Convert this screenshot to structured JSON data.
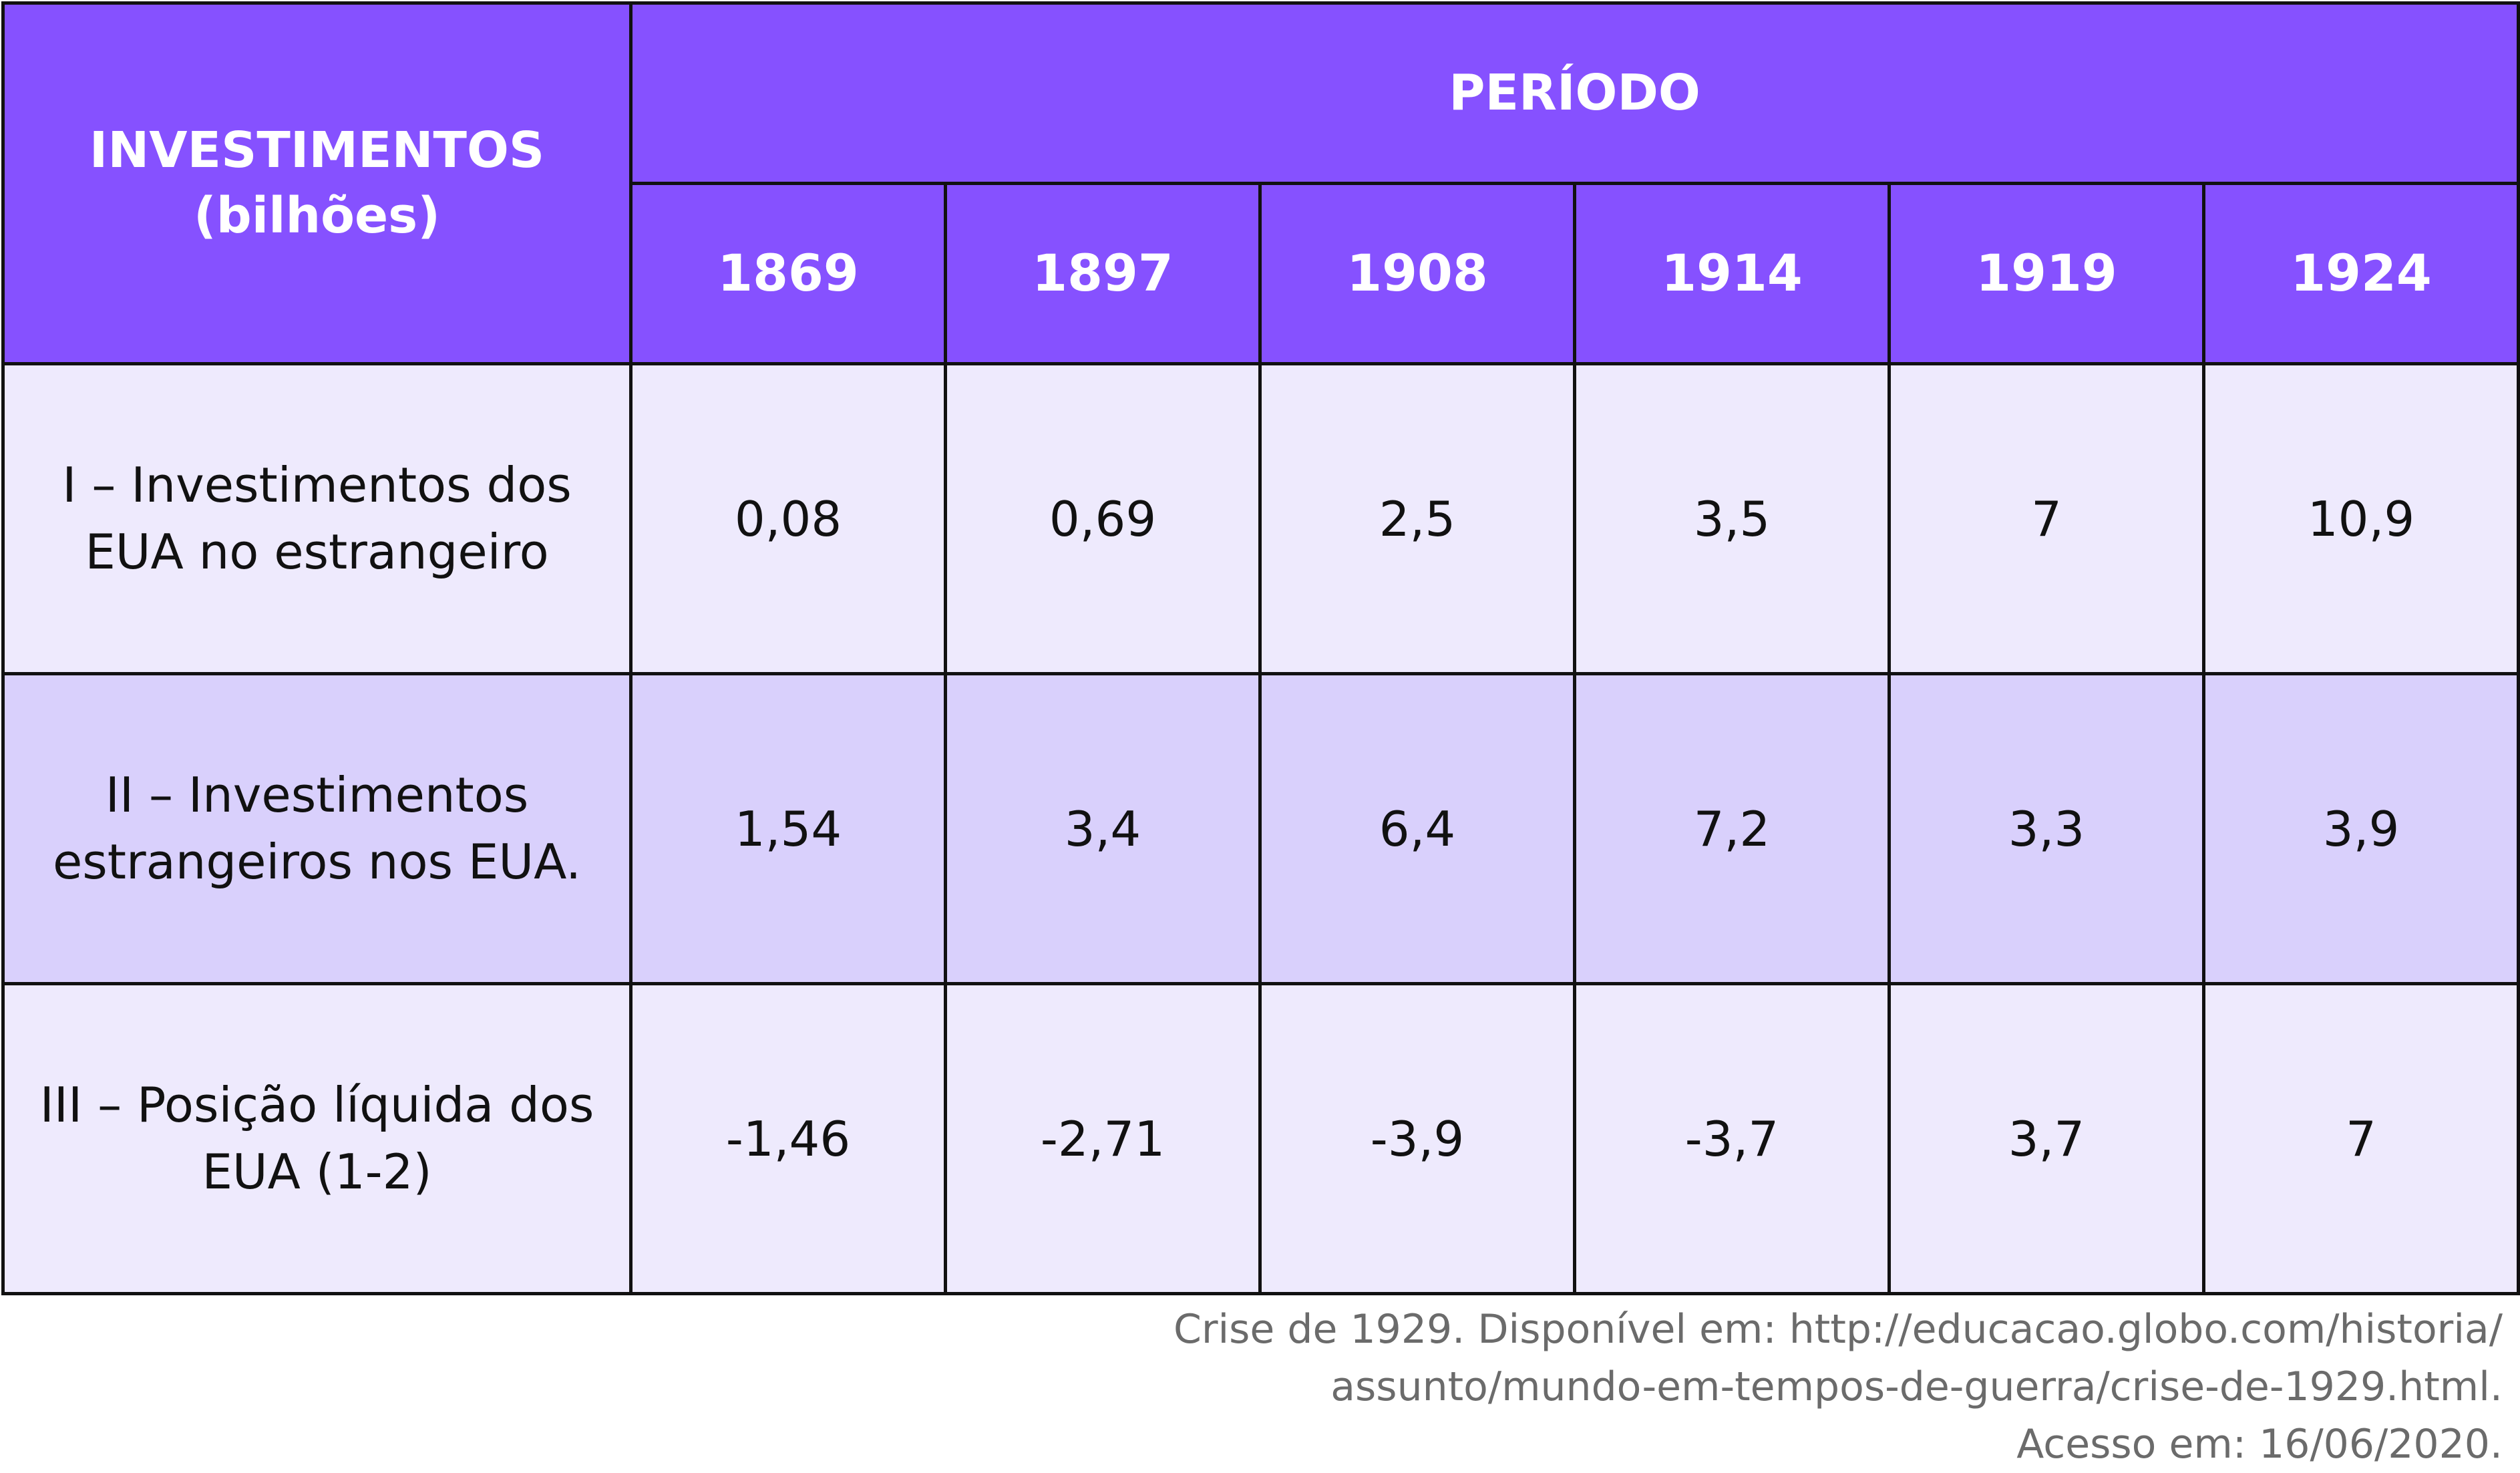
{
  "table": {
    "header_label": "INVESTIMENTOS",
    "header_sublabel": "(bilhões)",
    "period_label": "PERÍODO",
    "years": [
      "1869",
      "1897",
      "1908",
      "1914",
      "1919",
      "1924"
    ],
    "rows": [
      {
        "label_line1": "I – Investimentos dos",
        "label_line2": "EUA no estrangeiro",
        "values": [
          "0,08",
          "0,69",
          "2,5",
          "3,5",
          "7",
          "10,9"
        ]
      },
      {
        "label_line1": "II – Investimentos",
        "label_line2": "estrangeiros nos EUA.",
        "values": [
          "1,54",
          "3,4",
          "6,4",
          "7,2",
          "3,3",
          "3,9"
        ]
      },
      {
        "label_line1": "III – Posição líquida dos",
        "label_line2": "EUA (1-2)",
        "values": [
          "-1,46",
          "-2,71",
          "-3,9",
          "-3,7",
          "3,7",
          "7"
        ]
      }
    ]
  },
  "source": {
    "line1": "Crise de 1929. Disponível em: http://educacao.globo.com/historia/",
    "line2": "assunto/mundo-em-tempos-de-guerra/crise-de-1929.html.",
    "line3": "Acesso em: 16/06/2020."
  },
  "colors": {
    "header_bg": "#8651ff",
    "row_light": "#eeeafd",
    "row_mid": "#d9d0fc",
    "border": "#111111",
    "source_text": "#6b6b6b"
  }
}
